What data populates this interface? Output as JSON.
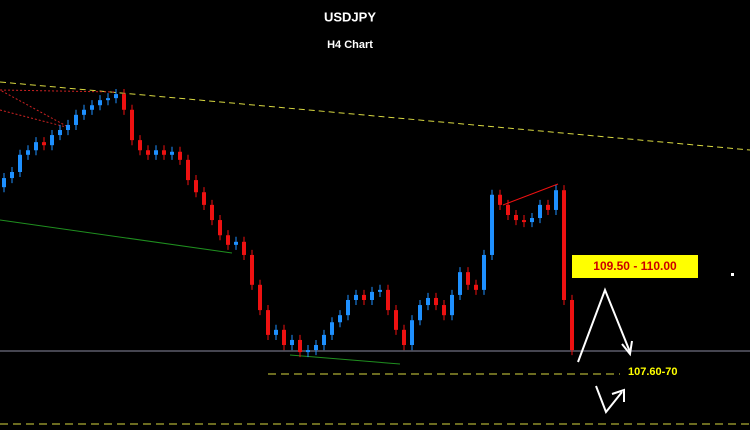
{
  "chart_data": {
    "type": "candlestick",
    "title": "USDJPY",
    "subtitle": "H4 Chart",
    "annotations": [
      "109.50 - 110.00",
      "107.60-70"
    ],
    "up_color": "#1e90ff",
    "down_color": "#ee1111",
    "ylim": [
      106.5,
      115.0
    ],
    "open": [
      111.3,
      111.48,
      111.6,
      111.94,
      112.03,
      112.19,
      112.13,
      112.33,
      112.43,
      112.53,
      112.73,
      112.83,
      112.92,
      113.02,
      113.06,
      113.14,
      112.83,
      112.23,
      112.03,
      111.94,
      112.03,
      111.94,
      112.0,
      111.84,
      111.44,
      111.2,
      110.95,
      110.65,
      110.35,
      110.16,
      110.22,
      109.96,
      109.37,
      108.87,
      108.38,
      108.48,
      108.18,
      108.28,
      108.04,
      108.08,
      108.18,
      108.38,
      108.63,
      108.77,
      109.07,
      109.17,
      109.07,
      109.23,
      109.27,
      108.87,
      108.48,
      108.18,
      108.67,
      108.97,
      109.11,
      108.97,
      108.77,
      109.17,
      109.62,
      109.37,
      109.27,
      109.96,
      111.15,
      110.95,
      110.75,
      110.65,
      110.61,
      110.69,
      110.95,
      110.85,
      111.24,
      109.07
    ],
    "high": [
      111.58,
      111.7,
      112.04,
      112.13,
      112.29,
      112.29,
      112.43,
      112.53,
      112.63,
      112.83,
      112.93,
      113.02,
      113.12,
      113.16,
      113.24,
      113.24,
      112.93,
      112.33,
      112.13,
      112.13,
      112.13,
      112.1,
      112.1,
      111.94,
      111.54,
      111.3,
      111.05,
      110.75,
      110.45,
      110.32,
      110.32,
      110.06,
      109.47,
      108.97,
      108.58,
      108.58,
      108.38,
      108.38,
      108.18,
      108.28,
      108.48,
      108.73,
      108.87,
      109.17,
      109.27,
      109.27,
      109.33,
      109.37,
      109.37,
      108.97,
      108.58,
      108.77,
      109.07,
      109.21,
      109.21,
      109.07,
      109.27,
      109.72,
      109.72,
      109.47,
      110.06,
      111.25,
      111.25,
      111.05,
      110.85,
      110.75,
      110.79,
      111.05,
      111.05,
      111.34,
      111.34,
      109.17
    ],
    "low": [
      111.2,
      111.38,
      111.5,
      111.84,
      111.93,
      112.03,
      112.03,
      112.23,
      112.33,
      112.43,
      112.63,
      112.73,
      112.82,
      112.92,
      112.96,
      112.73,
      112.13,
      111.93,
      111.84,
      111.84,
      111.84,
      111.84,
      111.74,
      111.34,
      111.1,
      110.85,
      110.55,
      110.25,
      110.06,
      110.06,
      109.86,
      109.27,
      108.77,
      108.28,
      108.28,
      108.08,
      108.08,
      107.94,
      107.94,
      107.98,
      108.08,
      108.28,
      108.53,
      108.67,
      108.97,
      108.97,
      108.97,
      109.13,
      108.77,
      108.38,
      108.08,
      108.08,
      108.57,
      108.87,
      108.87,
      108.67,
      108.67,
      109.07,
      109.27,
      109.17,
      109.17,
      109.86,
      110.85,
      110.65,
      110.55,
      110.51,
      110.51,
      110.59,
      110.75,
      110.75,
      108.97,
      107.98
    ],
    "close": [
      111.48,
      111.6,
      111.94,
      112.03,
      112.19,
      112.13,
      112.33,
      112.43,
      112.53,
      112.73,
      112.83,
      112.92,
      113.02,
      113.06,
      113.14,
      112.83,
      112.23,
      112.03,
      111.94,
      112.03,
      111.94,
      112.0,
      111.84,
      111.44,
      111.2,
      110.95,
      110.65,
      110.35,
      110.16,
      110.22,
      109.96,
      109.37,
      108.87,
      108.38,
      108.48,
      108.18,
      108.28,
      108.04,
      108.08,
      108.18,
      108.38,
      108.63,
      108.77,
      109.07,
      109.17,
      109.07,
      109.23,
      109.27,
      108.87,
      108.48,
      108.18,
      108.67,
      108.97,
      109.11,
      108.97,
      108.77,
      109.17,
      109.62,
      109.37,
      109.27,
      109.96,
      111.15,
      110.95,
      110.75,
      110.65,
      110.61,
      110.69,
      110.95,
      110.85,
      111.24,
      109.07,
      108.08
    ]
  }
}
